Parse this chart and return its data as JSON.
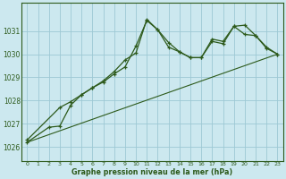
{
  "title": "Graphe pression niveau de la mer (hPa)",
  "bg_color": "#cce8ef",
  "grid_color": "#9dc8d4",
  "line_color": "#2d5a1b",
  "xlim": [
    -0.5,
    23.5
  ],
  "ylim": [
    1025.4,
    1032.2
  ],
  "yticks": [
    1026,
    1027,
    1028,
    1029,
    1030,
    1031
  ],
  "xticks": [
    0,
    1,
    2,
    3,
    4,
    5,
    6,
    7,
    8,
    9,
    10,
    11,
    12,
    13,
    14,
    15,
    16,
    17,
    18,
    19,
    20,
    21,
    22,
    23
  ],
  "line1_x": [
    0,
    23
  ],
  "line1_y": [
    1026.2,
    1030.0
  ],
  "line2_x": [
    0,
    3,
    4,
    5,
    6,
    7,
    8,
    9,
    10,
    11,
    12,
    13,
    14,
    15,
    16,
    17,
    18,
    19,
    20,
    21,
    22,
    23
  ],
  "line2_y": [
    1026.3,
    1027.7,
    1027.95,
    1028.25,
    1028.55,
    1028.85,
    1029.25,
    1029.75,
    1030.05,
    1031.5,
    1031.05,
    1030.3,
    1030.1,
    1029.85,
    1029.85,
    1030.55,
    1030.45,
    1031.2,
    1031.25,
    1030.8,
    1030.25,
    1030.0
  ],
  "line3_x": [
    0,
    2,
    3,
    4,
    5,
    6,
    7,
    8,
    9,
    10,
    11,
    12,
    13,
    14,
    15,
    16,
    17,
    18,
    19,
    20,
    21,
    22,
    23
  ],
  "line3_y": [
    1026.2,
    1026.85,
    1026.9,
    1027.8,
    1028.25,
    1028.55,
    1028.8,
    1029.15,
    1029.45,
    1030.35,
    1031.45,
    1031.05,
    1030.5,
    1030.1,
    1029.85,
    1029.85,
    1030.65,
    1030.55,
    1031.2,
    1030.85,
    1030.8,
    1030.3,
    1030.0
  ]
}
